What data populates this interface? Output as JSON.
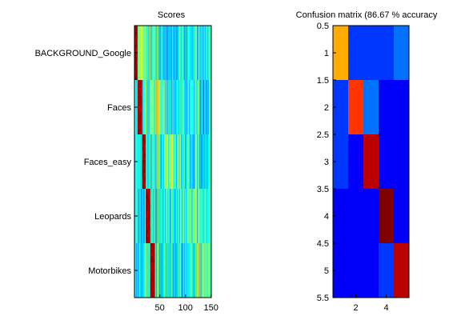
{
  "chart_data": [
    {
      "type": "heatmap",
      "title": "Scores",
      "classes": [
        "BACKGROUND_Google",
        "Faces",
        "Faces_easy",
        "Leopards",
        "Motorbikes"
      ],
      "xticks": [
        50,
        100,
        150
      ],
      "xlim": [
        0.5,
        150.5
      ],
      "colormap": "jet",
      "n_columns": 150,
      "truth_blocks": [
        {
          "class": "BACKGROUND_Google",
          "cols": [
            1,
            30
          ]
        },
        {
          "class": "Faces",
          "cols": [
            31,
            60
          ]
        },
        {
          "class": "Faces_easy",
          "cols": [
            61,
            90
          ]
        },
        {
          "class": "Leopards",
          "cols": [
            91,
            120
          ]
        },
        {
          "class": "Motorbikes",
          "cols": [
            121,
            150
          ]
        }
      ],
      "highlight_bands": [
        {
          "rows": [
            1,
            17
          ],
          "cols": [
            1,
            6
          ]
        },
        {
          "rows": [
            18,
            34
          ],
          "cols": [
            7,
            15
          ]
        },
        {
          "rows": [
            35,
            51
          ],
          "cols": [
            16,
            22
          ]
        },
        {
          "rows": [
            52,
            68
          ],
          "cols": [
            23,
            31
          ]
        },
        {
          "rows": [
            69,
            85
          ],
          "cols": [
            32,
            40
          ]
        }
      ]
    },
    {
      "type": "heatmap",
      "title": "Confusion matrix (86.67 % accuracy",
      "size": 5,
      "yticks": [
        "0.5",
        "1",
        "1.5",
        "2",
        "2.5",
        "3",
        "3.5",
        "4",
        "4.5",
        "5",
        "5.5"
      ],
      "xticks": [
        "2",
        "4"
      ],
      "colormap": "jet",
      "matrix": [
        [
          0.667,
          0.067,
          0.067,
          0.067,
          0.133
        ],
        [
          0.067,
          0.8,
          0.133,
          0.0,
          0.0
        ],
        [
          0.067,
          0.0,
          0.933,
          0.0,
          0.0
        ],
        [
          0.0,
          0.0,
          0.0,
          1.0,
          0.0
        ],
        [
          0.0,
          0.0,
          0.0,
          0.067,
          0.933
        ]
      ]
    }
  ]
}
